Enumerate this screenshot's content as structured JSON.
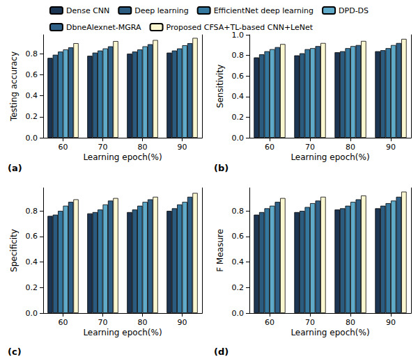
{
  "chart_data": [
    {
      "type": "bar",
      "title": "(a)",
      "x_label": "Learning epoch(%)",
      "y_label": "Testing accuracy",
      "categories": [
        "60",
        "70",
        "80",
        "90"
      ],
      "series": [
        {
          "name": "Dense CNN",
          "color": "#1c3552",
          "values": [
            0.76,
            0.78,
            0.8,
            0.81
          ]
        },
        {
          "name": "Deep learning",
          "color": "#2b5b7e",
          "values": [
            0.79,
            0.81,
            0.82,
            0.83
          ]
        },
        {
          "name": "EfficientNet deep learning",
          "color": "#34789f",
          "values": [
            0.82,
            0.83,
            0.84,
            0.85
          ]
        },
        {
          "name": "DPD-DS",
          "color": "#5fa9c9",
          "values": [
            0.84,
            0.85,
            0.87,
            0.88
          ]
        },
        {
          "name": "DbneAlexnet-MGRA",
          "color": "#2e6088",
          "values": [
            0.86,
            0.87,
            0.89,
            0.9
          ]
        },
        {
          "name": "Proposed CFSA+TL-based CNN+LeNet",
          "color": "#fbf7d0",
          "values": [
            0.9,
            0.92,
            0.93,
            0.95
          ]
        }
      ],
      "ylim": [
        0,
        0.98
      ],
      "yticks": [
        {
          "value": 0,
          "label": "0.0"
        },
        0.2,
        0.4,
        0.6,
        0.8
      ],
      "grid": false,
      "legend": "top"
    },
    {
      "type": "bar",
      "title": "(b)",
      "x_label": "Learning epoch(%)",
      "y_label": "Sensitivity",
      "categories": [
        "60",
        "70",
        "80",
        "90"
      ],
      "series": [
        {
          "name": "Dense CNN",
          "color": "#1c3552",
          "values": [
            0.78,
            0.8,
            0.83,
            0.84
          ]
        },
        {
          "name": "Deep learning",
          "color": "#2b5b7e",
          "values": [
            0.81,
            0.82,
            0.84,
            0.85
          ]
        },
        {
          "name": "EfficientNet deep learning",
          "color": "#34789f",
          "values": [
            0.84,
            0.86,
            0.87,
            0.87
          ]
        },
        {
          "name": "DPD-DS",
          "color": "#5fa9c9",
          "values": [
            0.86,
            0.87,
            0.89,
            0.9
          ]
        },
        {
          "name": "DbneAlexnet-MGRA",
          "color": "#2e6088",
          "values": [
            0.88,
            0.89,
            0.9,
            0.92
          ]
        },
        {
          "name": "Proposed CFSA+TL-based CNN+LeNet",
          "color": "#fbf7d0",
          "values": [
            0.91,
            0.92,
            0.94,
            0.96
          ]
        }
      ],
      "ylim": [
        0,
        1.0
      ],
      "yticks": [
        {
          "value": 0,
          "label": "0.0"
        },
        0.2,
        0.4,
        0.6,
        0.8,
        {
          "value": 1.0,
          "label": "1.0"
        }
      ],
      "grid": false,
      "legend": "top"
    },
    {
      "type": "bar",
      "title": "(c)",
      "x_label": "Learning epoch(%)",
      "y_label": "Specificity",
      "categories": [
        "60",
        "70",
        "80",
        "90"
      ],
      "series": [
        {
          "name": "Dense CNN",
          "color": "#1c3552",
          "values": [
            0.76,
            0.78,
            0.79,
            0.8
          ]
        },
        {
          "name": "Deep learning",
          "color": "#2b5b7e",
          "values": [
            0.77,
            0.79,
            0.81,
            0.82
          ]
        },
        {
          "name": "EfficientNet deep learning",
          "color": "#34789f",
          "values": [
            0.8,
            0.81,
            0.84,
            0.85
          ]
        },
        {
          "name": "DPD-DS",
          "color": "#5fa9c9",
          "values": [
            0.84,
            0.85,
            0.87,
            0.87
          ]
        },
        {
          "name": "DbneAlexnet-MGRA",
          "color": "#2e6088",
          "values": [
            0.87,
            0.88,
            0.89,
            0.91
          ]
        },
        {
          "name": "Proposed CFSA+TL-based CNN+LeNet",
          "color": "#fbf7d0",
          "values": [
            0.89,
            0.9,
            0.91,
            0.94
          ]
        }
      ],
      "ylim": [
        0,
        0.98
      ],
      "yticks": [
        {
          "value": 0,
          "label": "0.0"
        },
        0.2,
        0.4,
        0.6,
        0.8
      ],
      "grid": false,
      "legend": "top"
    },
    {
      "type": "bar",
      "title": "(d)",
      "x_label": "Learning epoch(%)",
      "y_label": "F Measure",
      "categories": [
        "60",
        "70",
        "80",
        "90"
      ],
      "series": [
        {
          "name": "Dense CNN",
          "color": "#1c3552",
          "values": [
            0.77,
            0.79,
            0.81,
            0.82
          ]
        },
        {
          "name": "Deep learning",
          "color": "#2b5b7e",
          "values": [
            0.79,
            0.8,
            0.82,
            0.84
          ]
        },
        {
          "name": "EfficientNet deep learning",
          "color": "#34789f",
          "values": [
            0.82,
            0.83,
            0.84,
            0.86
          ]
        },
        {
          "name": "DPD-DS",
          "color": "#5fa9c9",
          "values": [
            0.84,
            0.86,
            0.87,
            0.88
          ]
        },
        {
          "name": "DbneAlexnet-MGRA",
          "color": "#2e6088",
          "values": [
            0.87,
            0.88,
            0.89,
            0.91
          ]
        },
        {
          "name": "Proposed CFSA+TL-based CNN+LeNet",
          "color": "#fbf7d0",
          "values": [
            0.9,
            0.91,
            0.92,
            0.95
          ]
        }
      ],
      "ylim": [
        0,
        0.98
      ],
      "yticks": [
        {
          "value": 0,
          "label": "0.0"
        },
        0.2,
        0.4,
        0.6,
        0.8
      ],
      "grid": false,
      "legend": "top"
    }
  ]
}
